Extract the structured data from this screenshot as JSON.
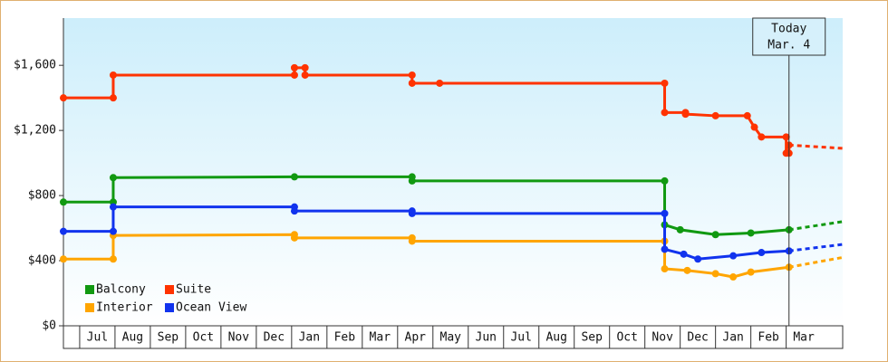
{
  "chart_data": {
    "type": "line",
    "today": 20.08,
    "today_label": [
      "Today",
      "Mar. 4"
    ],
    "xlim": [
      -0.46,
      21.6
    ],
    "xticks": [
      {
        "value": 0,
        "label": "Jul"
      },
      {
        "value": 1,
        "label": "Aug"
      },
      {
        "value": 2,
        "label": "Sep"
      },
      {
        "value": 3,
        "label": "Oct"
      },
      {
        "value": 4,
        "label": "Nov"
      },
      {
        "value": 5,
        "label": "Dec"
      },
      {
        "value": 6,
        "label": "Jan"
      },
      {
        "value": 7,
        "label": "Feb"
      },
      {
        "value": 8,
        "label": "Mar"
      },
      {
        "value": 9,
        "label": "Apr"
      },
      {
        "value": 10,
        "label": "May"
      },
      {
        "value": 11,
        "label": "Jun"
      },
      {
        "value": 12,
        "label": "Jul"
      },
      {
        "value": 13,
        "label": "Aug"
      },
      {
        "value": 14,
        "label": "Sep"
      },
      {
        "value": 15,
        "label": "Oct"
      },
      {
        "value": 16,
        "label": "Nov"
      },
      {
        "value": 17,
        "label": "Dec"
      },
      {
        "value": 18,
        "label": "Jan"
      },
      {
        "value": 19,
        "label": "Feb"
      },
      {
        "value": 20,
        "label": "Mar"
      }
    ],
    "ylim": [
      0,
      1890
    ],
    "yticks": [
      {
        "value": 0,
        "label": "$0"
      },
      {
        "value": 400,
        "label": "$400"
      },
      {
        "value": 800,
        "label": "$800"
      },
      {
        "value": 1200,
        "label": "$1,200"
      },
      {
        "value": 1600,
        "label": "$1,600"
      }
    ],
    "series": [
      {
        "name": "Balcony",
        "color": "#119911",
        "x": [
          -0.46,
          0.95,
          0.95,
          6.08,
          9.41,
          9.41,
          16.56,
          16.56,
          17.0,
          18.0,
          19.0,
          20.08,
          21.6
        ],
        "values": [
          760,
          760,
          910,
          915,
          915,
          890,
          890,
          620,
          590,
          560,
          570,
          590,
          640
        ]
      },
      {
        "name": "Suite",
        "color": "#ff3300",
        "x": [
          -0.46,
          0.95,
          0.95,
          6.08,
          6.08,
          6.38,
          6.38,
          9.41,
          9.41,
          10.19,
          16.56,
          16.56,
          17.15,
          17.15,
          18.0,
          18.9,
          19.1,
          19.3,
          20.0,
          20.0,
          20.08,
          20.08,
          21.6
        ],
        "values": [
          1400,
          1400,
          1540,
          1540,
          1585,
          1585,
          1540,
          1540,
          1490,
          1490,
          1490,
          1310,
          1310,
          1300,
          1290,
          1290,
          1220,
          1160,
          1160,
          1060,
          1060,
          1110,
          1090
        ]
      },
      {
        "name": "Interior",
        "color": "#ffa500",
        "x": [
          -0.46,
          0.95,
          0.95,
          6.08,
          6.08,
          9.41,
          9.41,
          16.56,
          16.56,
          17.2,
          18.0,
          18.5,
          19.0,
          20.08,
          21.6
        ],
        "values": [
          410,
          410,
          555,
          560,
          540,
          540,
          520,
          520,
          350,
          340,
          320,
          300,
          330,
          360,
          420
        ]
      },
      {
        "name": "Ocean View",
        "color": "#1133ee",
        "x": [
          -0.46,
          0.95,
          0.95,
          6.08,
          6.08,
          9.41,
          9.41,
          16.56,
          16.56,
          17.1,
          17.5,
          18.5,
          19.3,
          20.08,
          21.6
        ],
        "values": [
          580,
          580,
          730,
          730,
          705,
          705,
          690,
          690,
          470,
          440,
          410,
          430,
          450,
          460,
          500
        ]
      }
    ]
  }
}
